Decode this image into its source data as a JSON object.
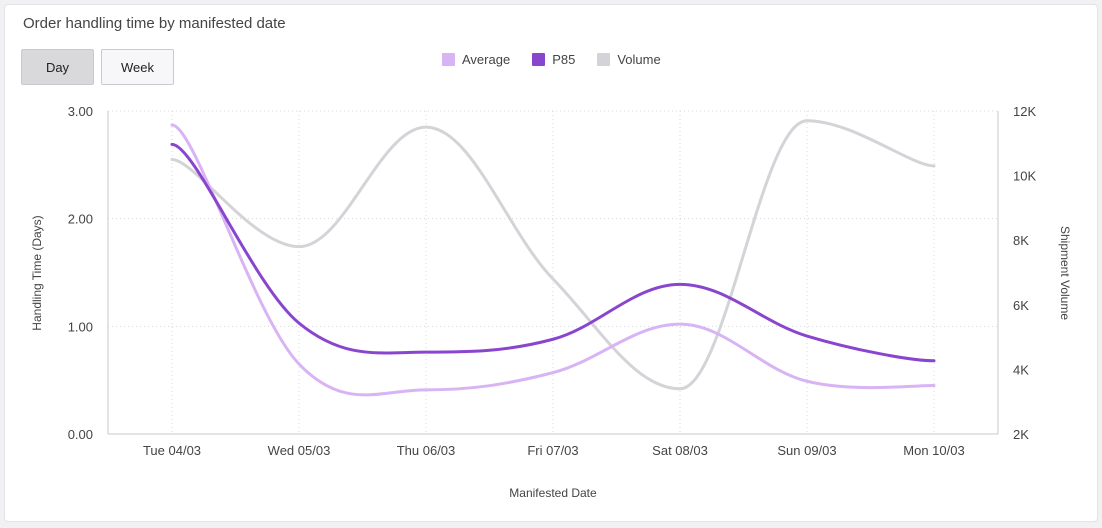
{
  "page": {
    "title": "Order handling time by manifested date",
    "buttons": [
      {
        "label": "Day",
        "active": true
      },
      {
        "label": "Week",
        "active": false
      }
    ]
  },
  "colors": {
    "average": "#d8b4f4",
    "p85": "#8a45cf",
    "volume": "#d4d4d8",
    "grid": "#d8d8d8",
    "axis": "#c8c8c8"
  },
  "chart_data": {
    "type": "line",
    "title": "Order handling time by manifested date",
    "xlabel": "Manifested Date",
    "ylabel": "Handling Time (Days)",
    "y2label": "Shipment Volume",
    "categories": [
      "Tue 04/03",
      "Wed 05/03",
      "Thu 06/03",
      "Fri 07/03",
      "Sat 08/03",
      "Sun 09/03",
      "Mon 10/03"
    ],
    "ylim": [
      0,
      3
    ],
    "yticks": [
      "0.00",
      "1.00",
      "2.00",
      "3.00"
    ],
    "y2lim": [
      2000,
      12000
    ],
    "y2ticks": [
      "2K",
      "4K",
      "6K",
      "8K",
      "10K",
      "12K"
    ],
    "legend": [
      "Average",
      "P85",
      "Volume"
    ],
    "grid": true,
    "series": [
      {
        "name": "Average",
        "axis": "left",
        "values": [
          2.87,
          0.65,
          0.41,
          0.57,
          1.02,
          0.49,
          0.45
        ]
      },
      {
        "name": "P85",
        "axis": "left",
        "values": [
          2.69,
          1.03,
          0.76,
          0.88,
          1.39,
          0.91,
          0.68
        ]
      },
      {
        "name": "Volume",
        "axis": "right",
        "values": [
          10500,
          7800,
          11500,
          6800,
          3400,
          11700,
          10300
        ]
      }
    ]
  }
}
